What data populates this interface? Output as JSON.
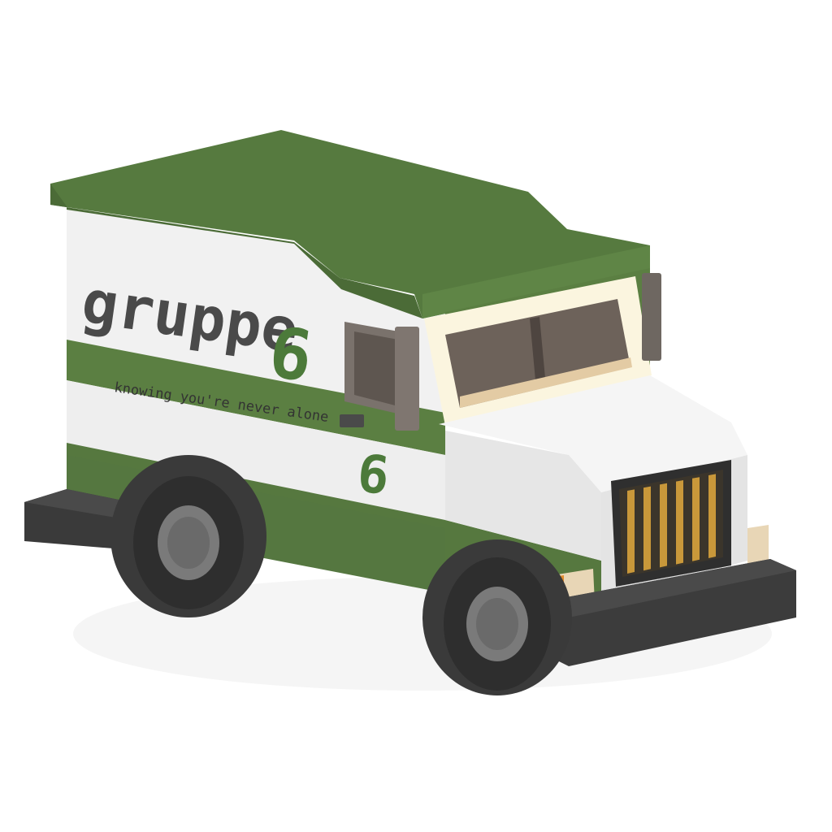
{
  "subject": "armored-van",
  "livery": {
    "brand_name": "gruppe",
    "brand_numeral": "6",
    "tagline": "knowing you're never alone",
    "door_numeral": "6"
  },
  "colors": {
    "body_green": "#56783f",
    "roof_green": "#5b7f42",
    "roof_dark": "#4a6a36",
    "body_white": "#f1f1f1",
    "text_gray": "#4a4a4a",
    "bumper": "#3c3c3c",
    "tire": "#2e2e2e",
    "hub": "#7a7a7a",
    "window_frame": "#fbf5df",
    "window_glass": "#6d625a",
    "grille_slat": "#c9983a",
    "headlight": "#e8d6b6",
    "indicator": "#e08a2c"
  }
}
